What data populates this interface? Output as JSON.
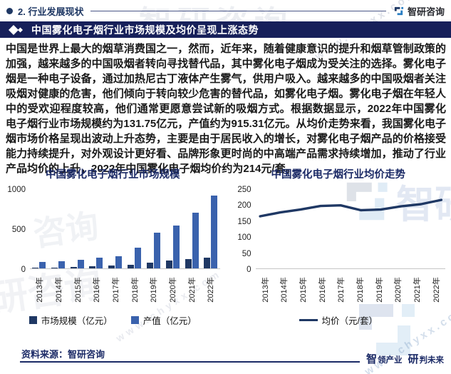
{
  "page": {
    "section_label": "2. 行业发展现状",
    "brand_name": "智研咨询",
    "headline": "中国雾化电子烟行业市场规模及均价呈现上涨态势",
    "body_text": "中国是世界上最大的烟草消费国之一，然而，近年来，随着健康意识的提升和烟草管制政策的加强，越来越多的中国吸烟者转向寻找替代品，其中雾化电子烟成为受关注的选择。雾化电子烟是一种电子设备，通过加热尼古丁液体产生雾气，供用户吸入。越来越多的中国吸烟者关注吸烟对健康的危害，他们倾向于转向较少危害的替代品，如雾化电子烟。雾化电子烟在年轻人中的受欢迎程度较高，他们通常更愿意尝试新的吸烟方式。根据数据显示，2022年中国雾化电子烟行业市场规模约为131.75亿元，产值约为915.31亿元。从均价走势来看，我国雾化电子烟市场价格呈现出波动上升态势，主要是由于居民收入的增长，对雾化电子烟产品的价格接受能力持续提升，对外观设计更好看、品牌形象更时尚的中高端产品需求持续增加，推动了行业产品均价的上升，2022年中国雾化电子烟均价约为214元/套。",
    "source_label": "资料来源：智研咨询",
    "slogan": {
      "zhi": "智",
      "ling": "领产业",
      "yan": "研",
      "pan": "判未来"
    }
  },
  "watermarks": {
    "brand": "智研咨询",
    "brand_short": "智研",
    "chars_left": "咨询",
    "chars_bl": "研咨询",
    "url": "www.chyxx.com"
  },
  "colors": {
    "navy": "#1f3864",
    "band_bg": "#17205a",
    "bar_primary": "#1f3864",
    "bar_secondary": "#3a62ad",
    "line": "#1f3864",
    "accent_blue": "#2b7fc4",
    "axis_gray": "#c6c6c6"
  },
  "chart_data": [
    {
      "type": "bar",
      "title": "中国雾化电子烟行业市场规模",
      "categories": [
        "2013年",
        "2014年",
        "2015年",
        "2016年",
        "2017年",
        "2018年",
        "2019年",
        "2020年",
        "2021年",
        "2022年"
      ],
      "series": [
        {
          "name": "市场规模（亿元）",
          "color": "#1f3864",
          "values": [
            8,
            12,
            20,
            30,
            36,
            48,
            76,
            97,
            120,
            131.75
          ]
        },
        {
          "name": "产值（亿元）",
          "color": "#3a62ad",
          "values": [
            79,
            90,
            105,
            130,
            155,
            258,
            448,
            533,
            697,
            915.31
          ]
        }
      ],
      "xlabel": "",
      "ylabel": "",
      "ylim": [
        0,
        1000
      ],
      "yticks": [
        0,
        500,
        1000
      ],
      "grid": false,
      "legend_position": "bottom"
    },
    {
      "type": "line",
      "title": "中国雾化电子烟行业均价走势",
      "categories": [
        "2013年",
        "2014年",
        "2015年",
        "2016年",
        "2017年",
        "2018年",
        "2019年",
        "2020年",
        "2021年",
        "2022年"
      ],
      "series": [
        {
          "name": "均价（元/套）",
          "color": "#1f3864",
          "values": [
            163,
            175,
            184,
            195,
            197,
            182,
            184,
            194,
            201,
            214
          ]
        }
      ],
      "xlabel": "",
      "ylabel": "",
      "ylim": [
        0,
        250
      ],
      "yticks": [
        0,
        50,
        100,
        150,
        200,
        250
      ],
      "grid": false,
      "legend_position": "bottom"
    }
  ]
}
